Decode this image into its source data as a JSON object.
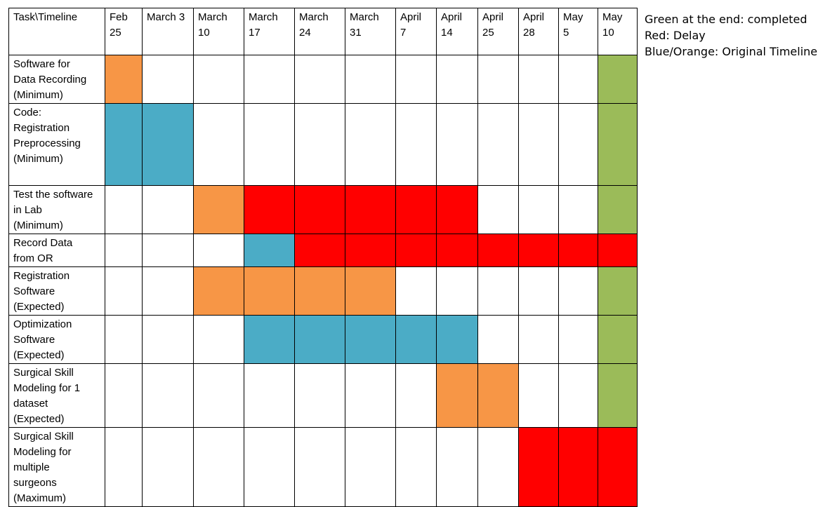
{
  "colors": {
    "original_orange": "#f79646",
    "original_blue": "#4bacc6",
    "delay_red": "#ff0000",
    "completed_green": "#9bbb59",
    "none": "#ffffff"
  },
  "header": {
    "corner": "Task\\Timeline",
    "columns": [
      "Feb\n25",
      "March 3",
      "March\n10",
      "March\n17",
      "March\n24",
      "March\n31",
      "April\n7",
      "April\n14",
      "April\n25",
      "April\n28",
      "May\n5",
      "May\n10"
    ]
  },
  "tasks": [
    {
      "label": "Software for\nData Recording\n(Minimum)",
      "cells": [
        "orange",
        "none",
        "none",
        "none",
        "none",
        "none",
        "none",
        "none",
        "none",
        "none",
        "none",
        "green"
      ]
    },
    {
      "label": "Code:\nRegistration\nPreprocessing\n(Minimum)",
      "cells": [
        "blue",
        "blue",
        "none",
        "none",
        "none",
        "none",
        "none",
        "none",
        "none",
        "none",
        "none",
        "green"
      ]
    },
    {
      "label": "Test the software\nin Lab\n(Minimum)",
      "cells": [
        "none",
        "none",
        "orange",
        "red",
        "red",
        "red",
        "red",
        "red",
        "none",
        "none",
        "none",
        "green"
      ]
    },
    {
      "label": "Record Data\nfrom OR",
      "cells": [
        "none",
        "none",
        "none",
        "blue",
        "red",
        "red",
        "red",
        "red",
        "red",
        "red",
        "red",
        "red"
      ]
    },
    {
      "label": "Registration\nSoftware\n(Expected)",
      "cells": [
        "none",
        "none",
        "orange",
        "orange",
        "orange",
        "orange",
        "none",
        "none",
        "none",
        "none",
        "none",
        "green"
      ]
    },
    {
      "label": "Optimization\nSoftware\n(Expected)",
      "cells": [
        "none",
        "none",
        "none",
        "blue",
        "blue",
        "blue",
        "blue",
        "blue",
        "none",
        "none",
        "none",
        "green"
      ]
    },
    {
      "label": "Surgical Skill\nModeling for 1\ndataset\n(Expected)",
      "cells": [
        "none",
        "none",
        "none",
        "none",
        "none",
        "none",
        "none",
        "orange",
        "orange",
        "none",
        "none",
        "green"
      ]
    },
    {
      "label": "Surgical Skill\nModeling for\nmultiple\nsurgeons\n(Maximum)",
      "cells": [
        "none",
        "none",
        "none",
        "none",
        "none",
        "none",
        "none",
        "none",
        "none",
        "red",
        "red",
        "red"
      ]
    }
  ],
  "legend": {
    "line1": "Green at the end: completed",
    "line2": "Red: Delay",
    "line3": "Blue/Orange: Original Timeline"
  }
}
